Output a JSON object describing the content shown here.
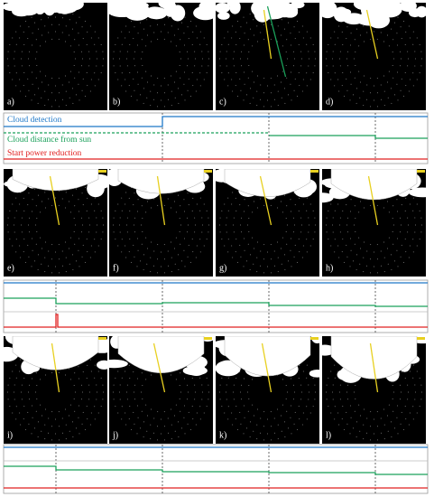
{
  "panels": [
    {
      "label": "a)"
    },
    {
      "label": "b)"
    },
    {
      "label": "c)"
    },
    {
      "label": "d)"
    },
    {
      "label": "e)"
    },
    {
      "label": "f)"
    },
    {
      "label": "g)"
    },
    {
      "label": "h)"
    },
    {
      "label": "i)"
    },
    {
      "label": "j)"
    },
    {
      "label": "k)"
    },
    {
      "label": "l)"
    }
  ],
  "legend": {
    "cloud_detection": "Cloud detection",
    "cloud_distance": "Cloud distance from sun",
    "power_reduction": "Start power reduction"
  }
}
